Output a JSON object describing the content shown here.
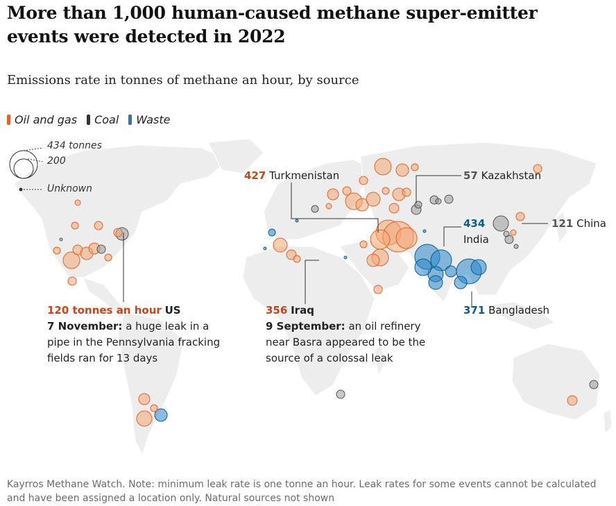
{
  "headline": "More than 1,000 human-caused methane super-emitter events were detected in 2022",
  "standfirst": "Emissions rate in tonnes of methane an hour, by source",
  "legend": {
    "items": [
      {
        "label": "Oil and gas",
        "color": "#e2642b"
      },
      {
        "label": "Coal",
        "color": "#333333"
      },
      {
        "label": "Waste",
        "color": "#3b6db3"
      }
    ],
    "size_labels": [
      "434 tonnes",
      "200",
      "Unknown"
    ]
  },
  "colors": {
    "oil_fill": "#f4a777",
    "oil_stroke": "#e2642b",
    "waste_fill": "#2a86c9",
    "waste_stroke": "#0c5d8f",
    "coal_fill": "#9b9b9b",
    "coal_stroke": "#555555",
    "land": "#ededed"
  },
  "annotations": {
    "us": {
      "value": "120 tonnes an hour",
      "place": "US",
      "date": "7 November:",
      "text": "a huge leak in a pipe in the Pennsylvania fracking fields ran for 13 days"
    },
    "iraq": {
      "value": "356",
      "place": "Iraq",
      "date": "9 September:",
      "text": "an oil refinery near Basra appeared to be the source of a colossal leak"
    },
    "turkmenistan": {
      "value": "427",
      "place": "Turkmenistan"
    },
    "kazakhstan": {
      "value": "57",
      "place": "Kazakhstan"
    },
    "india": {
      "value": "434",
      "place": "India"
    },
    "china": {
      "value": "121",
      "place": "China"
    },
    "bangladesh": {
      "value": "371",
      "place": "Bangladesh"
    }
  },
  "footnote": "Kayrros Methane Watch. Note: minimum leak rate is one tonne an hour. Leak rates for some events cannot be calculated and have been assigned a location only. Natural sources not shown"
}
